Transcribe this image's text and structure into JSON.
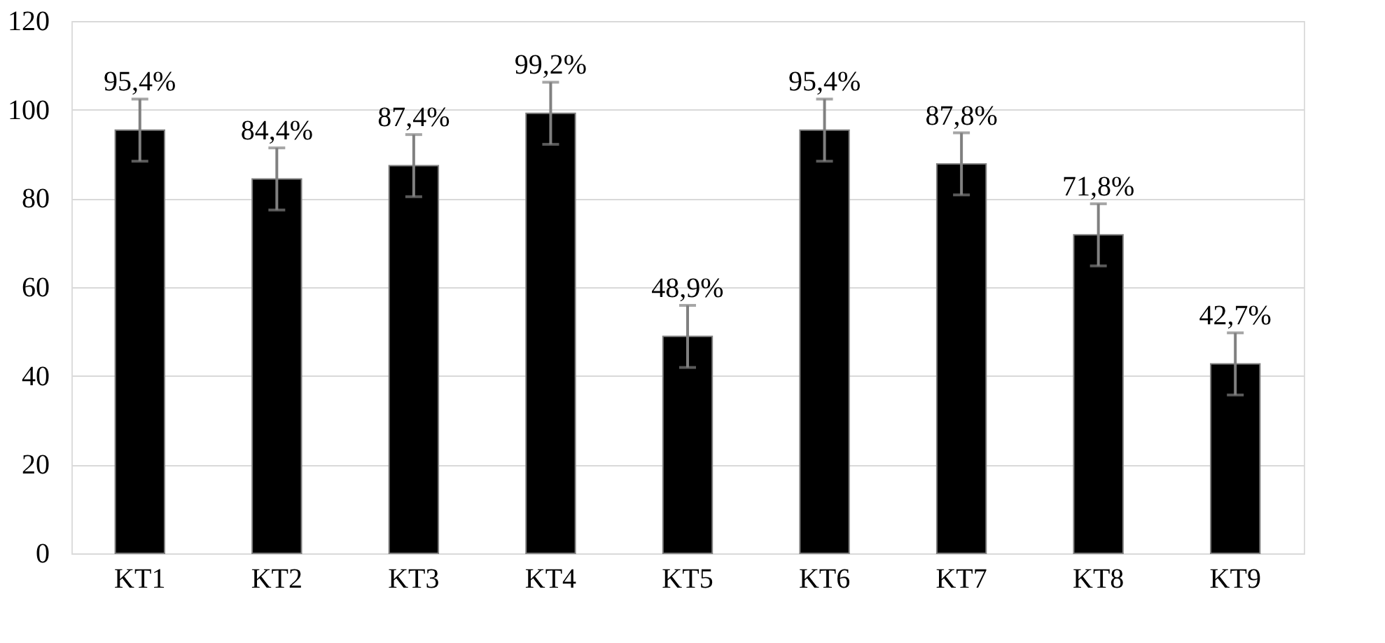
{
  "chart_data": {
    "type": "bar",
    "categories": [
      "KT1",
      "KT2",
      "KT3",
      "KT4",
      "KT5",
      "KT6",
      "KT7",
      "KT8",
      "KT9"
    ],
    "values": [
      95.4,
      84.4,
      87.4,
      99.2,
      48.9,
      95.4,
      87.8,
      71.8,
      42.7
    ],
    "value_labels": [
      "95,4%",
      "84,4%",
      "87,4%",
      "99,2%",
      "48,9%",
      "95,4%",
      "87,8%",
      "71,8%",
      "42,7%"
    ],
    "errors": [
      7,
      7,
      7,
      7,
      7,
      7,
      7,
      7,
      7
    ],
    "color": "#000000",
    "ylim": [
      0,
      120
    ],
    "yticks": [
      0,
      20,
      40,
      60,
      80,
      100,
      120
    ],
    "grid": "y"
  }
}
